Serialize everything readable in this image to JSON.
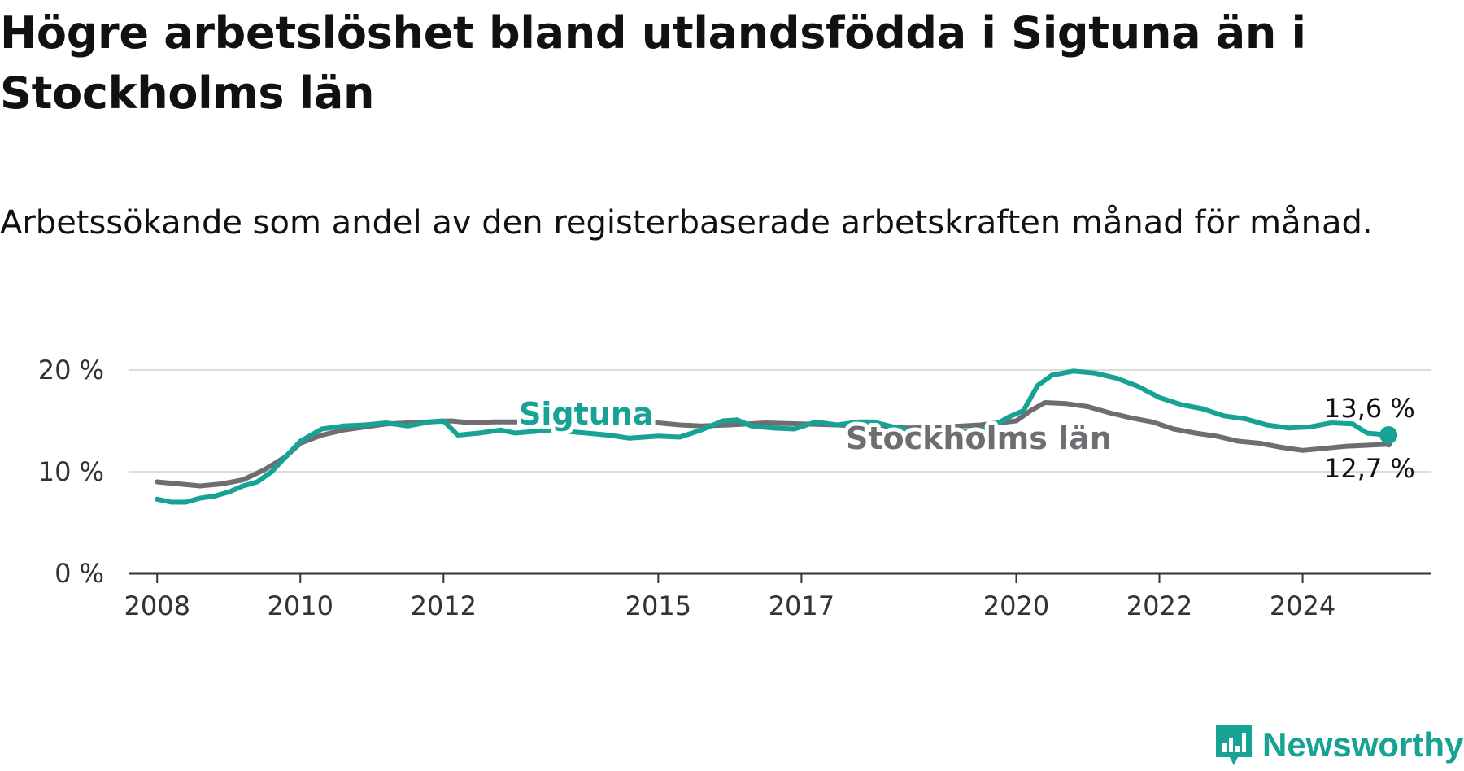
{
  "title": "Högre arbetslöshet bland utlandsfödda i Sigtuna än i Stockholms län",
  "subtitle": "Arbetssökande som andel av den registerbaserade arbetskraften månad för månad.",
  "brand": {
    "name": "Newsworthy",
    "color": "#16a394"
  },
  "chart_data": {
    "type": "line",
    "title": "Högre arbetslöshet bland utlandsfödda i Sigtuna än i Stockholms län",
    "subtitle": "Arbetssökande som andel av den registerbaserade arbetskraften månad för månad.",
    "xlabel": "",
    "ylabel": "",
    "xlim": [
      2007.6,
      2025.8
    ],
    "ylim": [
      0,
      20
    ],
    "y_ticks": [
      {
        "value": 0,
        "label": "0 %"
      },
      {
        "value": 10,
        "label": "10 %"
      },
      {
        "value": 20,
        "label": "20 %"
      }
    ],
    "x_ticks": [
      {
        "value": 2008,
        "label": "2008"
      },
      {
        "value": 2010,
        "label": "2010"
      },
      {
        "value": 2012,
        "label": "2012"
      },
      {
        "value": 2015,
        "label": "2015"
      },
      {
        "value": 2017,
        "label": "2017"
      },
      {
        "value": 2020,
        "label": "2020"
      },
      {
        "value": 2022,
        "label": "2022"
      },
      {
        "value": 2024,
        "label": "2024"
      }
    ],
    "grid": true,
    "series": [
      {
        "name": "Stockholms län",
        "label": "Stockholms län",
        "color": "#6e6e72",
        "end_label": "12,7 %",
        "points": [
          [
            2008.0,
            9.0
          ],
          [
            2008.3,
            8.8
          ],
          [
            2008.6,
            8.6
          ],
          [
            2008.9,
            8.8
          ],
          [
            2009.2,
            9.2
          ],
          [
            2009.5,
            10.2
          ],
          [
            2009.8,
            11.5
          ],
          [
            2010.0,
            12.8
          ],
          [
            2010.3,
            13.6
          ],
          [
            2010.6,
            14.1
          ],
          [
            2010.9,
            14.4
          ],
          [
            2011.2,
            14.7
          ],
          [
            2011.5,
            14.8
          ],
          [
            2011.8,
            14.9
          ],
          [
            2012.1,
            15.0
          ],
          [
            2012.4,
            14.8
          ],
          [
            2012.7,
            14.9
          ],
          [
            2013.0,
            14.9
          ],
          [
            2013.5,
            15.0
          ],
          [
            2014.0,
            15.1
          ],
          [
            2014.5,
            15.0
          ],
          [
            2015.0,
            14.8
          ],
          [
            2015.3,
            14.6
          ],
          [
            2015.6,
            14.5
          ],
          [
            2016.0,
            14.6
          ],
          [
            2016.5,
            14.8
          ],
          [
            2017.0,
            14.7
          ],
          [
            2017.5,
            14.6
          ],
          [
            2018.0,
            14.4
          ],
          [
            2018.5,
            14.3
          ],
          [
            2019.0,
            14.4
          ],
          [
            2019.5,
            14.6
          ],
          [
            2020.0,
            15.0
          ],
          [
            2020.2,
            16.0
          ],
          [
            2020.4,
            16.8
          ],
          [
            2020.7,
            16.7
          ],
          [
            2021.0,
            16.4
          ],
          [
            2021.3,
            15.8
          ],
          [
            2021.6,
            15.3
          ],
          [
            2021.9,
            14.9
          ],
          [
            2022.2,
            14.2
          ],
          [
            2022.5,
            13.8
          ],
          [
            2022.8,
            13.5
          ],
          [
            2023.1,
            13.0
          ],
          [
            2023.4,
            12.8
          ],
          [
            2023.7,
            12.4
          ],
          [
            2024.0,
            12.1
          ],
          [
            2024.3,
            12.3
          ],
          [
            2024.6,
            12.5
          ],
          [
            2024.9,
            12.6
          ],
          [
            2025.2,
            12.7
          ]
        ]
      },
      {
        "name": "Sigtuna",
        "label": "Sigtuna",
        "color": "#16a394",
        "end_label": "13,6 %",
        "points": [
          [
            2008.0,
            7.3
          ],
          [
            2008.2,
            7.0
          ],
          [
            2008.4,
            7.0
          ],
          [
            2008.6,
            7.4
          ],
          [
            2008.8,
            7.6
          ],
          [
            2009.0,
            8.0
          ],
          [
            2009.2,
            8.6
          ],
          [
            2009.4,
            9.0
          ],
          [
            2009.6,
            10.0
          ],
          [
            2009.8,
            11.5
          ],
          [
            2010.0,
            13.0
          ],
          [
            2010.3,
            14.2
          ],
          [
            2010.6,
            14.5
          ],
          [
            2010.9,
            14.6
          ],
          [
            2011.2,
            14.8
          ],
          [
            2011.5,
            14.5
          ],
          [
            2011.8,
            14.9
          ],
          [
            2012.0,
            15.0
          ],
          [
            2012.2,
            13.6
          ],
          [
            2012.5,
            13.8
          ],
          [
            2012.8,
            14.1
          ],
          [
            2013.0,
            13.8
          ],
          [
            2013.5,
            14.1
          ],
          [
            2014.0,
            13.8
          ],
          [
            2014.3,
            13.6
          ],
          [
            2014.6,
            13.3
          ],
          [
            2015.0,
            13.5
          ],
          [
            2015.3,
            13.4
          ],
          [
            2015.6,
            14.1
          ],
          [
            2015.9,
            15.0
          ],
          [
            2016.1,
            15.1
          ],
          [
            2016.3,
            14.5
          ],
          [
            2016.6,
            14.3
          ],
          [
            2016.9,
            14.2
          ],
          [
            2017.2,
            14.9
          ],
          [
            2017.5,
            14.6
          ],
          [
            2017.8,
            14.9
          ],
          [
            2018.0,
            14.9
          ],
          [
            2018.4,
            14.2
          ],
          [
            2018.8,
            13.8
          ],
          [
            2019.2,
            13.9
          ],
          [
            2019.6,
            14.2
          ],
          [
            2019.9,
            15.4
          ],
          [
            2020.1,
            16.0
          ],
          [
            2020.3,
            18.5
          ],
          [
            2020.5,
            19.5
          ],
          [
            2020.8,
            19.9
          ],
          [
            2021.1,
            19.7
          ],
          [
            2021.4,
            19.2
          ],
          [
            2021.7,
            18.4
          ],
          [
            2022.0,
            17.3
          ],
          [
            2022.3,
            16.6
          ],
          [
            2022.6,
            16.2
          ],
          [
            2022.9,
            15.5
          ],
          [
            2023.2,
            15.2
          ],
          [
            2023.5,
            14.6
          ],
          [
            2023.8,
            14.3
          ],
          [
            2024.1,
            14.4
          ],
          [
            2024.4,
            14.8
          ],
          [
            2024.7,
            14.7
          ],
          [
            2024.9,
            13.8
          ],
          [
            2025.2,
            13.6
          ]
        ]
      }
    ]
  }
}
